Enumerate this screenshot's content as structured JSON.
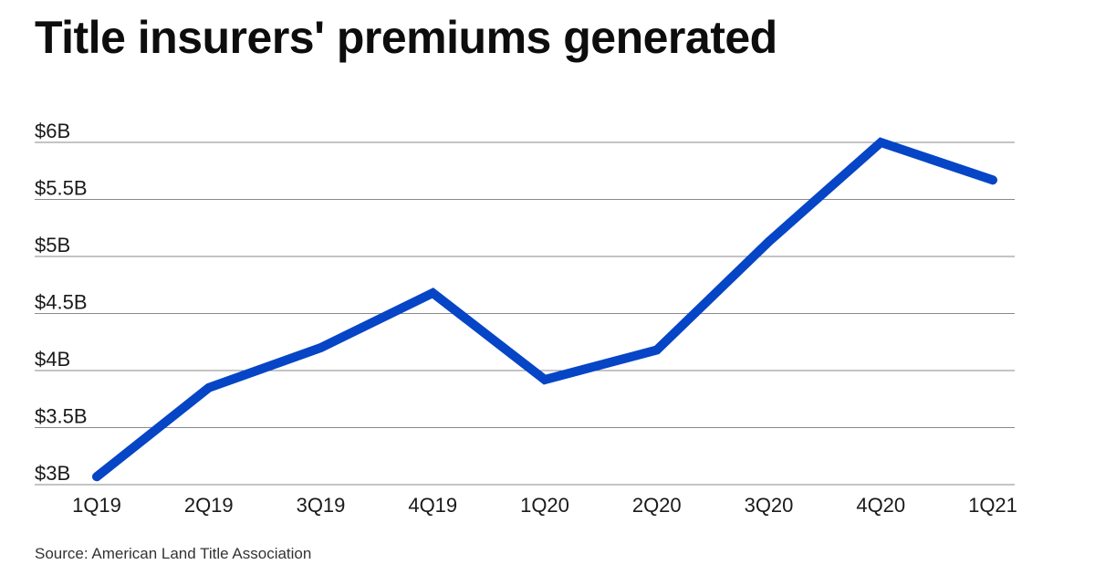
{
  "title": "Title insurers' premiums generated",
  "source": "Source: American Land Title Association",
  "colors": {
    "line": "#0645c6",
    "grid": "#8a8a8a",
    "text": "#1a1a1a"
  },
  "chart_data": {
    "type": "line",
    "title": "Title insurers' premiums generated",
    "xlabel": "",
    "ylabel": "",
    "categories": [
      "1Q19",
      "2Q19",
      "3Q19",
      "4Q19",
      "1Q20",
      "2Q20",
      "3Q20",
      "4Q20",
      "1Q21"
    ],
    "series": [
      {
        "values": [
          3.07,
          3.85,
          4.2,
          4.68,
          3.92,
          4.18,
          5.13,
          6.0,
          5.67
        ]
      }
    ],
    "ylim": [
      3,
      6
    ],
    "yticks": [
      3,
      3.5,
      4,
      4.5,
      5,
      5.5,
      6
    ],
    "ytick_labels": [
      "$3B",
      "$3.5B",
      "$4B",
      "$4.5B",
      "$5B",
      "$5.5B",
      "$6B"
    ],
    "grid": true,
    "legend": "none"
  }
}
